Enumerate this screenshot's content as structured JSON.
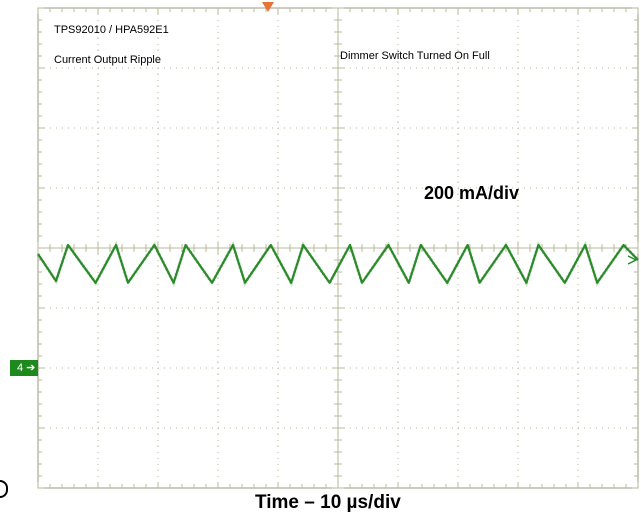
{
  "chart_data": {
    "type": "line",
    "title": "TPS92010 / HPA592E1",
    "subtitle": "Current Output Ripple",
    "annotations": {
      "condition": "Dimmer Switch Turned On Full",
      "vertical_scale": "200 mA/div"
    },
    "xlabel": "Time – 10 µs/div",
    "channel_marker": "4",
    "x_divisions": 10,
    "y_divisions": 8,
    "xlim": [
      0,
      100
    ],
    "ylim": [
      -3.8,
      4.2
    ],
    "series": [
      {
        "color": "#2b8a2b",
        "x": [
          0,
          3,
          5,
          9.6,
          13,
          15,
          19.4,
          22.6,
          24.6,
          29.0,
          32.5,
          34.5,
          38.8,
          42.2,
          44.2,
          48.6,
          52.0,
          54.0,
          58.4,
          61.8,
          63.8,
          68.2,
          71.6,
          73.6,
          78.0,
          81.4,
          83.4,
          87.8,
          91.2,
          93.2,
          97.6,
          100
        ],
        "values": [
          0.1,
          -0.35,
          0.25,
          -0.38,
          0.25,
          -0.38,
          0.25,
          -0.38,
          0.25,
          -0.38,
          0.25,
          -0.38,
          0.25,
          -0.38,
          0.25,
          -0.38,
          0.25,
          -0.38,
          0.25,
          -0.38,
          0.25,
          -0.38,
          0.25,
          -0.38,
          0.25,
          -0.38,
          0.25,
          -0.38,
          0.25,
          -0.38,
          0.25,
          0.0
        ]
      }
    ],
    "colors": {
      "grid": "#b8b89a",
      "frame": "#9a9a80",
      "trace": "#2b8a2b",
      "marker": "#1e8a1e",
      "trigger": "#e5733a"
    }
  }
}
